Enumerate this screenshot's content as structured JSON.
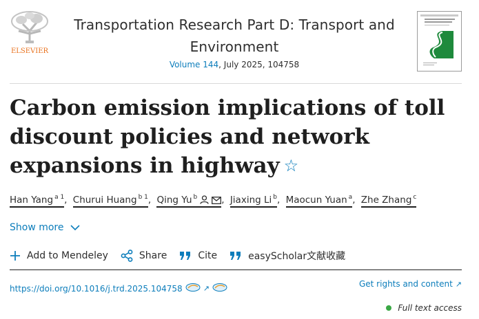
{
  "header": {
    "publisher": "ELSEVIER",
    "journal_title": "Transportation Research Part D: Transport and Environment",
    "volume_link": "Volume 144",
    "volume_rest": ", July 2025, 104758"
  },
  "article": {
    "title": "Carbon emission implications of toll discount policies and network expansions in highway"
  },
  "authors": [
    {
      "name": "Han Yang",
      "sup": "a 1"
    },
    {
      "name": "Churui Huang",
      "sup": "b 1"
    },
    {
      "name": "Qing Yu",
      "sup": "b"
    },
    {
      "name": "Jiaxing Li",
      "sup": "b"
    },
    {
      "name": "Maocun Yuan",
      "sup": "a"
    },
    {
      "name": "Zhe Zhang",
      "sup": "c"
    }
  ],
  "show_more": "Show more",
  "toolbar": {
    "mendeley": "Add to Mendeley",
    "share": "Share",
    "cite": "Cite",
    "easyscholar": "easyScholar文献收藏"
  },
  "doi": "https://doi.org/10.1016/j.trd.2025.104758",
  "rights": "Get rights and content",
  "access": "Full text access",
  "colors": {
    "link": "#0c7dbb",
    "publisher": "#e9711c",
    "access_dot": "#3aa845"
  },
  "icons": [
    "elsevier-tree-logo",
    "journal-cover",
    "star-icon",
    "person-icon",
    "mail-icon",
    "chevron-down-icon",
    "plus-icon",
    "share-icon",
    "quote-icon",
    "external-link-icon"
  ]
}
